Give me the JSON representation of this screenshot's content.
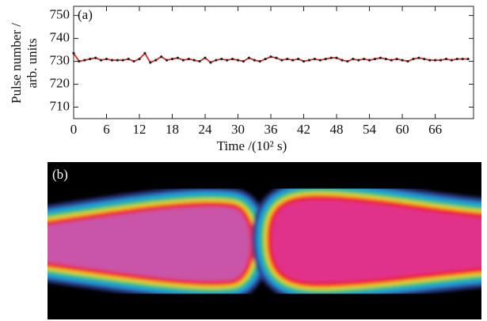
{
  "chart_data": {
    "type": "line",
    "panel_label": "(a)",
    "ylabel": [
      "Pulse number /",
      "arb. units"
    ],
    "xlabel": "Time /(10² s)",
    "x": [
      0,
      1,
      2,
      3,
      4,
      5,
      6,
      7,
      8,
      9,
      10,
      11,
      12,
      13,
      14,
      15,
      16,
      17,
      18,
      19,
      20,
      21,
      22,
      23,
      24,
      25,
      26,
      27,
      28,
      29,
      30,
      31,
      32,
      33,
      34,
      35,
      36,
      37,
      38,
      39,
      40,
      41,
      42,
      43,
      44,
      45,
      46,
      47,
      48,
      49,
      50,
      51,
      52,
      53,
      54,
      55,
      56,
      57,
      58,
      59,
      60,
      61,
      62,
      63,
      64,
      65,
      66,
      67,
      68,
      69,
      70,
      71,
      72
    ],
    "series": [
      {
        "color": "#e02424",
        "marker_color": "#222222",
        "values": [
          733.5,
          730,
          730.5,
          731,
          731.5,
          730.5,
          731,
          730.5,
          730.5,
          730.5,
          731,
          730,
          731,
          733.5,
          729.5,
          730.5,
          732,
          730.5,
          731,
          731.5,
          730.5,
          731,
          730.5,
          730,
          731.5,
          729.5,
          730.5,
          731,
          730.5,
          731,
          730.5,
          730,
          731.5,
          730.5,
          730,
          731,
          732,
          731.5,
          730.5,
          731,
          730.5,
          731,
          730,
          730.5,
          731,
          730.5,
          731,
          731.5,
          731.5,
          730.5,
          730,
          731,
          730.5,
          731,
          730.5,
          731,
          731.5,
          731,
          730.5,
          731,
          730.5,
          730,
          731,
          731.5,
          731,
          730.5,
          730.5,
          730.5,
          731,
          730.5,
          731,
          731,
          731
        ]
      }
    ],
    "xlim": [
      0,
      73
    ],
    "xticks": [
      0,
      6,
      12,
      18,
      24,
      30,
      36,
      42,
      48,
      54,
      60,
      66
    ],
    "ylim": [
      705,
      754
    ],
    "yticks": [
      710,
      720,
      730,
      740,
      750
    ]
  },
  "image": {
    "panel_label": "(b)"
  }
}
